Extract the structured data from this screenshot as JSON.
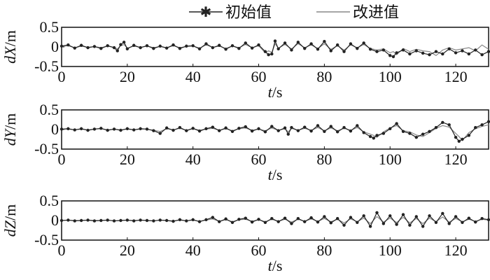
{
  "chart_data": {
    "type": "line",
    "legend": {
      "position": "top-right",
      "entries": [
        {
          "label": "初始值",
          "color": "#222222",
          "marker": "star"
        },
        {
          "label": "改进值",
          "color": "#888888",
          "marker": "none"
        }
      ]
    },
    "x_axis": {
      "label_var": "t",
      "label_unit": "/s",
      "range": [
        0,
        130
      ],
      "ticks": [
        0,
        20,
        40,
        60,
        80,
        100,
        120
      ]
    },
    "y_axis": {
      "range": [
        -0.5,
        0.5
      ],
      "ticks": [
        "0.5",
        "0",
        "-0.5"
      ],
      "tick_values": [
        0.5,
        0,
        -0.5
      ]
    },
    "panels": [
      {
        "ylabel_prefix": "d",
        "ylabel_var": "X",
        "ylabel_unit": "/m",
        "x": [
          0,
          2,
          4,
          6,
          8,
          10,
          12,
          14,
          16,
          17,
          18,
          19,
          20,
          22,
          24,
          26,
          28,
          30,
          32,
          34,
          36,
          38,
          40,
          42,
          44,
          46,
          48,
          50,
          52,
          54,
          56,
          58,
          60,
          62,
          63,
          64,
          65,
          66,
          68,
          70,
          72,
          74,
          76,
          78,
          80,
          82,
          84,
          86,
          88,
          90,
          92,
          94,
          96,
          98,
          100,
          101,
          102,
          104,
          106,
          108,
          110,
          112,
          114,
          116,
          118,
          120,
          122,
          124,
          126,
          128,
          130
        ],
        "series": [
          {
            "name": "初始值",
            "values": [
              0.02,
              0.05,
              -0.03,
              0.04,
              -0.02,
              0.01,
              -0.04,
              0.03,
              -0.02,
              -0.1,
              0.06,
              0.12,
              -0.05,
              0.04,
              -0.02,
              0.03,
              -0.04,
              0.02,
              -0.03,
              0.05,
              -0.04,
              0.02,
              0.03,
              -0.05,
              0.08,
              -0.02,
              0.04,
              -0.06,
              0.03,
              -0.04,
              0.1,
              -0.03,
              0.05,
              -0.12,
              -0.2,
              -0.18,
              0.15,
              -0.05,
              0.1,
              -0.08,
              0.12,
              -0.04,
              0.08,
              -0.06,
              0.14,
              -0.1,
              0.05,
              -0.12,
              0.08,
              -0.04,
              0.1,
              -0.06,
              -0.12,
              -0.08,
              -0.22,
              -0.25,
              -0.15,
              -0.08,
              -0.18,
              -0.1,
              -0.16,
              -0.2,
              -0.12,
              -0.18,
              -0.05,
              -0.15,
              -0.1,
              -0.18,
              -0.08,
              -0.2,
              -0.12
            ]
          },
          {
            "name": "改进值",
            "values": [
              0.01,
              0.03,
              -0.02,
              0.02,
              -0.01,
              0.01,
              -0.02,
              0.02,
              -0.01,
              -0.05,
              0.03,
              0.06,
              -0.03,
              0.02,
              -0.01,
              0.02,
              -0.02,
              0.01,
              -0.02,
              0.03,
              -0.02,
              0.01,
              0.02,
              -0.03,
              0.05,
              -0.01,
              0.02,
              -0.04,
              0.02,
              -0.02,
              0.06,
              -0.02,
              0.03,
              -0.15,
              -0.1,
              -0.14,
              0.08,
              -0.03,
              0.06,
              -0.05,
              0.08,
              -0.02,
              0.05,
              -0.04,
              0.08,
              -0.06,
              0.03,
              -0.08,
              0.05,
              -0.02,
              0.06,
              -0.04,
              -0.08,
              -0.05,
              -0.15,
              -0.12,
              -0.2,
              -0.04,
              -0.12,
              -0.06,
              -0.1,
              -0.12,
              -0.22,
              -0.08,
              -0.02,
              -0.08,
              -0.05,
              -0.02,
              -0.1,
              0.05,
              -0.06
            ]
          }
        ]
      },
      {
        "ylabel_prefix": "d",
        "ylabel_var": "Y",
        "ylabel_unit": "/m",
        "x": [
          0,
          2,
          4,
          6,
          8,
          10,
          12,
          14,
          16,
          18,
          20,
          22,
          24,
          26,
          28,
          30,
          32,
          34,
          36,
          38,
          40,
          42,
          44,
          46,
          48,
          50,
          52,
          54,
          56,
          58,
          60,
          62,
          64,
          66,
          68,
          69,
          70,
          72,
          74,
          76,
          78,
          80,
          82,
          84,
          86,
          88,
          90,
          92,
          94,
          95,
          96,
          98,
          100,
          102,
          104,
          106,
          108,
          110,
          112,
          114,
          116,
          118,
          120,
          121,
          122,
          124,
          126,
          128,
          130
        ],
        "series": [
          {
            "name": "初始值",
            "values": [
              0.01,
              0.02,
              -0.01,
              0.02,
              -0.02,
              0.01,
              0.03,
              -0.02,
              0.01,
              -0.02,
              0.02,
              -0.01,
              0.02,
              0.01,
              -0.03,
              -0.1,
              0.04,
              -0.02,
              0.05,
              -0.03,
              0.03,
              -0.04,
              0.02,
              0.06,
              -0.03,
              0.04,
              -0.05,
              0.03,
              0.07,
              -0.04,
              0.02,
              -0.06,
              0.08,
              -0.03,
              0.04,
              -0.12,
              0.05,
              -0.03,
              0.06,
              -0.04,
              0.1,
              -0.05,
              0.08,
              -0.06,
              0.05,
              -0.04,
              0.1,
              -0.08,
              -0.18,
              -0.22,
              -0.15,
              -0.1,
              0.02,
              0.15,
              -0.05,
              -0.1,
              -0.2,
              -0.12,
              -0.05,
              0.05,
              0.18,
              0.12,
              -0.2,
              -0.3,
              -0.25,
              -0.15,
              0.05,
              0.12,
              0.2
            ]
          },
          {
            "name": "改进值",
            "values": [
              0.01,
              0.01,
              -0.01,
              0.01,
              -0.01,
              0.01,
              0.02,
              -0.01,
              0.01,
              -0.01,
              0.01,
              -0.01,
              0.01,
              0.01,
              -0.02,
              -0.05,
              0.02,
              -0.01,
              0.03,
              -0.02,
              0.02,
              -0.02,
              0.01,
              0.03,
              -0.02,
              0.02,
              -0.03,
              0.02,
              0.04,
              -0.02,
              0.01,
              -0.03,
              0.04,
              -0.02,
              0.02,
              -0.06,
              0.03,
              -0.02,
              0.03,
              -0.02,
              0.05,
              -0.03,
              0.04,
              -0.03,
              0.03,
              -0.02,
              0.05,
              -0.06,
              -0.12,
              -0.15,
              -0.2,
              -0.06,
              0.04,
              0.1,
              -0.03,
              -0.06,
              -0.14,
              -0.18,
              -0.08,
              0.03,
              0.1,
              0.06,
              -0.1,
              -0.18,
              -0.28,
              -0.08,
              0.02,
              0.08,
              0.12
            ]
          }
        ]
      },
      {
        "ylabel_prefix": "d",
        "ylabel_var": "Z",
        "ylabel_unit": "/m",
        "x": [
          0,
          2,
          4,
          6,
          8,
          10,
          12,
          14,
          16,
          18,
          20,
          22,
          24,
          26,
          28,
          30,
          32,
          34,
          36,
          38,
          40,
          42,
          44,
          46,
          48,
          50,
          52,
          54,
          56,
          58,
          60,
          62,
          64,
          66,
          68,
          70,
          72,
          74,
          76,
          78,
          80,
          82,
          84,
          86,
          88,
          90,
          92,
          94,
          96,
          98,
          100,
          102,
          104,
          106,
          108,
          110,
          112,
          114,
          116,
          118,
          120,
          122,
          124,
          126,
          128,
          130
        ],
        "series": [
          {
            "name": "初始值",
            "values": [
              0,
              0.01,
              -0.01,
              0,
              0.01,
              -0.01,
              0,
              0.01,
              -0.01,
              0,
              0.01,
              -0.01,
              0.01,
              0,
              -0.01,
              0.01,
              0,
              -0.02,
              0.02,
              -0.01,
              0.02,
              -0.03,
              0.02,
              0.08,
              -0.03,
              0.04,
              -0.05,
              0.03,
              0.06,
              -0.04,
              0.03,
              -0.05,
              0.05,
              -0.03,
              0.06,
              -0.08,
              0.05,
              -0.03,
              0.07,
              -0.04,
              0.1,
              -0.06,
              0.05,
              -0.12,
              0.08,
              -0.05,
              0.12,
              -0.15,
              0.2,
              -0.08,
              0.12,
              -0.1,
              0.15,
              -0.12,
              0.1,
              -0.15,
              0.12,
              -0.05,
              0.18,
              -0.08,
              0.1,
              -0.05,
              0.06,
              -0.04,
              0.05,
              0.02
            ]
          },
          {
            "name": "改进值",
            "values": [
              0,
              0.01,
              0,
              0,
              0.01,
              0,
              0,
              0.01,
              -0.01,
              0,
              0.01,
              0,
              0.01,
              0,
              -0.01,
              0.01,
              0,
              -0.01,
              0.01,
              -0.01,
              0.01,
              -0.02,
              0.01,
              0.04,
              -0.02,
              0.02,
              -0.03,
              0.02,
              0.03,
              -0.02,
              0.02,
              -0.03,
              0.03,
              -0.02,
              0.03,
              -0.04,
              0.03,
              -0.02,
              0.04,
              -0.02,
              0.05,
              -0.03,
              0.03,
              -0.06,
              0.04,
              -0.03,
              0.06,
              -0.08,
              0.1,
              -0.04,
              0.06,
              -0.05,
              0.08,
              -0.06,
              0.05,
              -0.08,
              0.06,
              -0.03,
              0.09,
              -0.04,
              0.05,
              -0.03,
              0.03,
              -0.02,
              0.03,
              0.01
            ]
          }
        ]
      }
    ]
  }
}
